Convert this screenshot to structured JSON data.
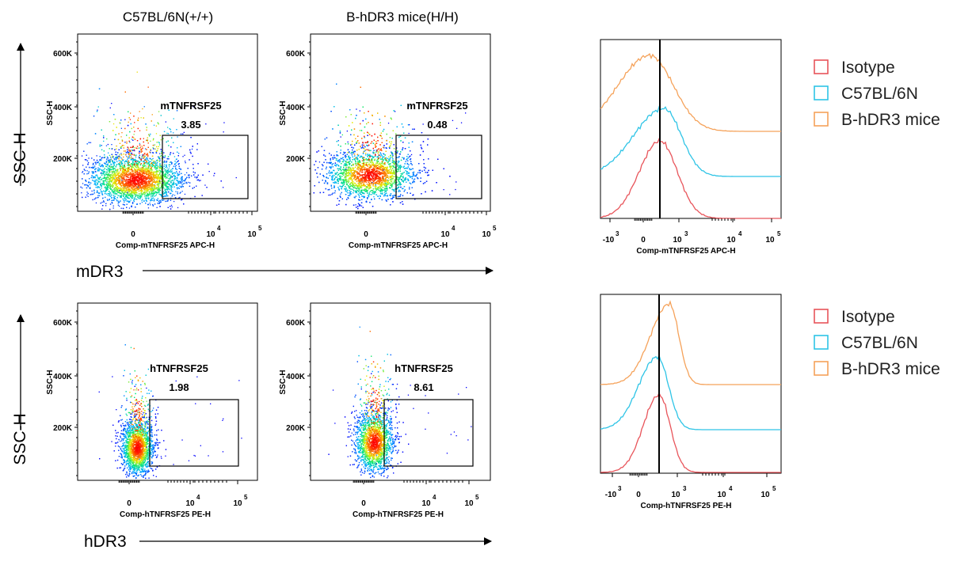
{
  "column_titles": [
    "C57BL/6N(+/+)",
    "B-hDR3 mice(H/H)"
  ],
  "row_ylabel": "SSC-H",
  "row_xlabels": [
    "mDR3",
    "hDR3"
  ],
  "legend": [
    {
      "label": "Isotype",
      "color": "#e8545a"
    },
    {
      "label": "C57BL/6N",
      "color": "#2ec4e6"
    },
    {
      "label": "B-hDR3 mice",
      "color": "#f5a25a"
    }
  ],
  "chart_data": [
    {
      "type": "scatter",
      "id": "mdr3-wt",
      "xlabel": "Comp-mTNFRSF25 APC-H",
      "ylabel": "SSC-H",
      "yticks": [
        "200K",
        "400K",
        "600K"
      ],
      "xticks": [
        "0",
        "10",
        "10"
      ],
      "xtick_exponents": [
        "",
        "4",
        "5"
      ],
      "gate": {
        "name": "mTNFRSF25",
        "value": "3.85"
      }
    },
    {
      "type": "scatter",
      "id": "mdr3-h",
      "xlabel": "Comp-mTNFRSF25 APC-H",
      "ylabel": "SSC-H",
      "yticks": [
        "200K",
        "400K",
        "600K"
      ],
      "xticks": [
        "0",
        "10",
        "10"
      ],
      "xtick_exponents": [
        "",
        "4",
        "5"
      ],
      "gate": {
        "name": "mTNFRSF25",
        "value": "0.48"
      }
    },
    {
      "type": "line",
      "id": "mdr3-hist",
      "xlabel": "Comp-mTNFRSF25 APC-H",
      "xticks": [
        "-10",
        "0",
        "10",
        "10",
        "10"
      ],
      "xtick_exponents": [
        "3",
        "",
        "3",
        "4",
        "5"
      ]
    },
    {
      "type": "scatter",
      "id": "hdr3-wt",
      "xlabel": "Comp-hTNFRSF25 PE-H",
      "ylabel": "SSC-H",
      "yticks": [
        "200K",
        "400K",
        "600K"
      ],
      "xticks": [
        "0",
        "10",
        "10"
      ],
      "xtick_exponents": [
        "",
        "4",
        "5"
      ],
      "gate": {
        "name": "hTNFRSF25",
        "value": "1.98"
      }
    },
    {
      "type": "scatter",
      "id": "hdr3-h",
      "xlabel": "Comp-hTNFRSF25 PE-H",
      "ylabel": "SSC-H",
      "yticks": [
        "200K",
        "400K",
        "600K"
      ],
      "xticks": [
        "0",
        "10",
        "10"
      ],
      "xtick_exponents": [
        "",
        "4",
        "5"
      ],
      "gate": {
        "name": "hTNFRSF25",
        "value": "8.61"
      }
    },
    {
      "type": "line",
      "id": "hdr3-hist",
      "xlabel": "Comp-hTNFRSF25 PE-H",
      "xticks": [
        "-10",
        "0",
        "10",
        "10",
        "10"
      ],
      "xtick_exponents": [
        "3",
        "",
        "3",
        "4",
        "5"
      ]
    }
  ]
}
